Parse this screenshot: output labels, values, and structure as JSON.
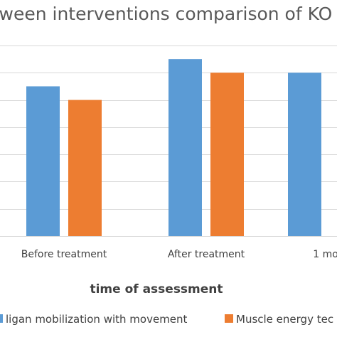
{
  "chart_data": {
    "type": "bar",
    "title": "tween interventions comparison of KO",
    "xlabel": "time of assessment",
    "ylabel": "",
    "categories": [
      "Before treatment",
      "After treatment",
      "1 mo"
    ],
    "series": [
      {
        "name": "ligan mobilization with movement",
        "color": "#5b9bd5",
        "values": [
          5.5,
          6.5,
          6.0
        ]
      },
      {
        "name": "Muscle energy tec",
        "color": "#ed7d31",
        "values": [
          5.0,
          6.0,
          null
        ]
      }
    ],
    "ylim": [
      0,
      7
    ],
    "grid": true,
    "legend_position": "bottom"
  }
}
